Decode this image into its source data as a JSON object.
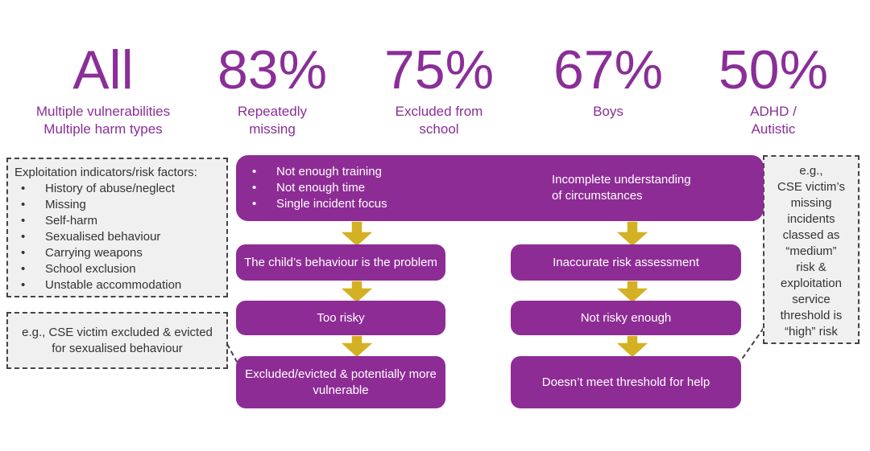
{
  "colors": {
    "purple": "#8e2c96",
    "stat_text": "#8a2e98",
    "arrow": "#d4b023",
    "note_bg": "#f0f0f0",
    "note_border": "#444444"
  },
  "stats": [
    {
      "value": "All",
      "label_lines": [
        "Multiple vulnerabilities",
        "Multiple harm types"
      ]
    },
    {
      "value": "83%",
      "label_lines": [
        "Repeatedly",
        "missing"
      ]
    },
    {
      "value": "75%",
      "label_lines": [
        "Excluded from",
        "school"
      ]
    },
    {
      "value": "67%",
      "label_lines": [
        "Boys",
        ""
      ]
    },
    {
      "value": "50%",
      "label_lines": [
        "ADHD /",
        "Autistic"
      ]
    }
  ],
  "risk_factors": {
    "title": "Exploitation indicators/risk factors:",
    "items": [
      "History of abuse/neglect",
      "Missing",
      "Self-harm",
      "Sexualised behaviour",
      "Carrying weapons",
      "School exclusion",
      "Unstable accommodation"
    ]
  },
  "left_example": {
    "lines": [
      "e.g., CSE victim excluded & evicted",
      "for sexualised behaviour"
    ]
  },
  "right_example": {
    "lines": [
      "e.g.,",
      "CSE victim’s",
      "missing",
      "incidents",
      "classed as",
      "“medium”",
      "risk &",
      "exploitation",
      "service",
      "threshold is",
      "“high” risk"
    ]
  },
  "top_bar": {
    "causes": [
      "Not enough training",
      "Not enough time",
      "Single incident focus"
    ],
    "result_lines": [
      "Incomplete understanding",
      "of circumstances"
    ]
  },
  "left_flow": [
    "The child’s behaviour is the problem",
    "Too risky",
    "Excluded/evicted & potentially more vulnerable"
  ],
  "right_flow": [
    "Inaccurate risk assessment",
    "Not risky enough",
    "Doesn’t meet threshold for help"
  ]
}
